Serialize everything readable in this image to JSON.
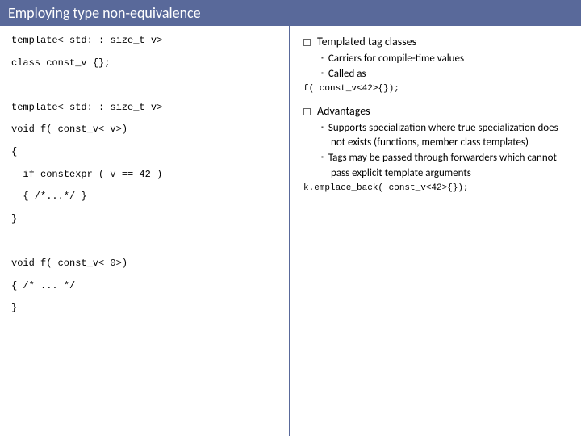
{
  "title": {
    "text": "Employing type non-equivalence",
    "bg": "#59699a",
    "fg": "#ffffff"
  },
  "colors": {
    "divider": "#59699a",
    "text": "#000000",
    "code": "#000000"
  },
  "left_code": {
    "l1": "template< std: : size_t v>",
    "l2": "class const_v {};",
    "gap1": " ",
    "l3": "template< std: : size_t v>",
    "l4": "void f( const_v< v>)",
    "l5": "{",
    "l6": "  if constexpr ( v == 42 )",
    "l7": "  { /*...*/ }",
    "l8": "}",
    "gap2": " ",
    "l9": "void f( const_v< 0>)",
    "l10": "{ /* ... */",
    "l11": "}"
  },
  "right": {
    "h1a": "Templated tag classes",
    "h1a_sub1": "Carriers for compile-time values",
    "h1a_sub2": "Called as",
    "h1a_code": "f( const_v<42>{});",
    "h1b": "Advantages",
    "h1b_sub1": "Supports specialization where true specialization does not exists (functions, member class templates)",
    "h1b_sub2": "Tags may be passed through forwarders which cannot pass explicit template arguments",
    "h1b_code": "k.emplace_back( const_v<42>{});"
  }
}
